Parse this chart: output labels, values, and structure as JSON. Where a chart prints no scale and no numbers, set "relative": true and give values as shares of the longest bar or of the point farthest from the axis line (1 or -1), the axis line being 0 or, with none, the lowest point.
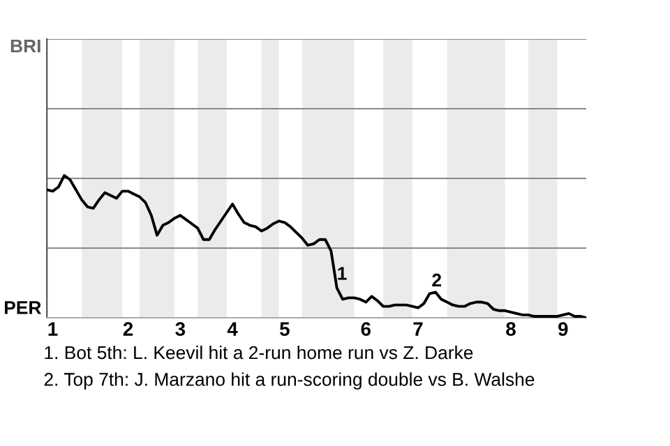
{
  "chart_data": {
    "type": "line",
    "relative": true,
    "categories": [
      null,
      "1",
      null,
      null,
      null,
      null,
      null,
      null,
      null,
      null,
      null,
      null,
      null,
      null,
      "2",
      null,
      null,
      null,
      null,
      null,
      null,
      null,
      null,
      "3",
      null,
      null,
      null,
      null,
      null,
      null,
      null,
      null,
      "4",
      null,
      null,
      null,
      null,
      null,
      null,
      null,
      null,
      "5",
      null,
      null,
      null,
      null,
      null,
      null,
      null,
      null,
      null,
      null,
      null,
      null,
      null,
      "6",
      null,
      null,
      null,
      null,
      null,
      null,
      null,
      null,
      "7",
      null,
      null,
      null,
      null,
      null,
      null,
      null,
      null,
      null,
      null,
      null,
      null,
      null,
      null,
      null,
      "8",
      null,
      null,
      null,
      null,
      null,
      null,
      null,
      null,
      "9",
      null,
      null,
      null,
      null
    ],
    "series": [
      {
        "color": "#000000",
        "values": [
          0.9,
          0.89,
          0.92,
          1.0,
          0.97,
          0.9,
          0.83,
          0.78,
          0.77,
          0.83,
          0.88,
          0.86,
          0.84,
          0.89,
          0.89,
          0.87,
          0.85,
          0.81,
          0.72,
          0.58,
          0.65,
          0.67,
          0.7,
          0.72,
          0.69,
          0.66,
          0.63,
          0.55,
          0.55,
          0.62,
          0.68,
          0.74,
          0.8,
          0.73,
          0.67,
          0.65,
          0.64,
          0.61,
          0.63,
          0.66,
          0.68,
          0.67,
          0.64,
          0.6,
          0.56,
          0.51,
          0.52,
          0.55,
          0.55,
          0.47,
          0.21,
          0.13,
          0.14,
          0.14,
          0.13,
          0.11,
          0.15,
          0.12,
          0.08,
          0.08,
          0.09,
          0.09,
          0.09,
          0.08,
          0.07,
          0.1,
          0.17,
          0.18,
          0.13,
          0.11,
          0.09,
          0.08,
          0.08,
          0.1,
          0.11,
          0.11,
          0.1,
          0.06,
          0.05,
          0.05,
          0.04,
          0.03,
          0.02,
          0.02,
          0.01,
          0.01,
          0.01,
          0.01,
          0.01,
          0.02,
          0.03,
          0.01,
          0.01,
          0
        ]
      }
    ],
    "marker": "none",
    "line_style": "solid",
    "ref_lines": [
      {
        "axis": "y",
        "value": 0.49,
        "color": "#888888"
      },
      {
        "axis": "y",
        "value": 0.98,
        "color": "#888888"
      },
      {
        "axis": "y",
        "value": 1.47,
        "color": "#888888"
      },
      {
        "axis": "y",
        "value": 1.96,
        "color": "#888888"
      }
    ],
    "annotations": [
      "BRI",
      "PER",
      {
        "text": "1",
        "y": 0.47
      },
      {
        "text": "2",
        "y": 0.18
      },
      "1. Bot 5th: L. Keevil hit a 2-run home run vs Z. Darke",
      "2. Top 7th: J. Marzano hit a run-scoring double vs B. Walshe"
    ]
  }
}
